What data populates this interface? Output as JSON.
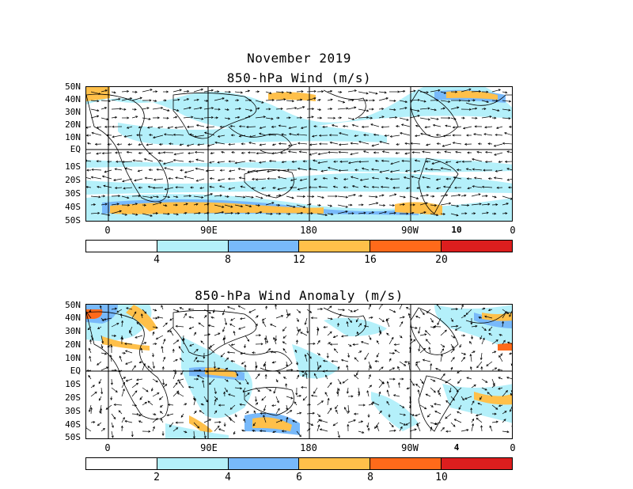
{
  "header": {
    "month_title": "November 2019",
    "panel1_title": "850-hPa Wind (m/s)",
    "panel2_title": "850-hPa Wind Anomaly (m/s)"
  },
  "latitude_labels": [
    "50N",
    "40N",
    "30N",
    "20N",
    "10N",
    "EQ",
    "10S",
    "20S",
    "30S",
    "40S",
    "50S"
  ],
  "longitude_labels": [
    "0",
    "90E",
    "180",
    "90W",
    "0"
  ],
  "panel1": {
    "reference_vector": "10",
    "colorbar": {
      "labels": [
        "4",
        "8",
        "12",
        "16",
        "20"
      ],
      "colors": [
        "#ffffff",
        "#b4f0fa",
        "#78b9fa",
        "#ffc04a",
        "#ff6a1a",
        "#dc1e1e"
      ]
    }
  },
  "panel2": {
    "reference_vector": "4",
    "colorbar": {
      "labels": [
        "2",
        "4",
        "6",
        "8",
        "10"
      ],
      "colors": [
        "#ffffff",
        "#b4f0fa",
        "#78b9fa",
        "#ffc04a",
        "#ff6a1a",
        "#dc1e1e"
      ]
    }
  },
  "colors": {
    "light_blue": "#b4f0fa",
    "mid_blue": "#78b9fa",
    "orange": "#ffc04a",
    "dark_orange": "#ff6a1a",
    "red": "#dc1e1e"
  }
}
